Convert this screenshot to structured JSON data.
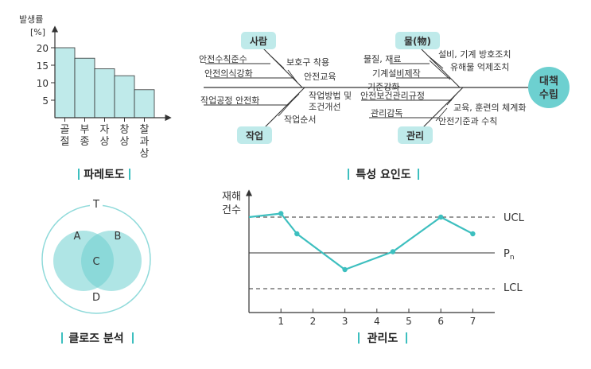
{
  "pareto": {
    "ylabel_line1": "발생률",
    "ylabel_line2": "[%]",
    "ticks": [
      "20",
      "15",
      "10",
      "5"
    ],
    "categories": [
      [
        "골",
        "절"
      ],
      [
        "부",
        "종"
      ],
      [
        "자",
        "상"
      ],
      [
        "창",
        "상"
      ],
      [
        "찰",
        "과",
        "상"
      ]
    ],
    "values": [
      20,
      17,
      14,
      12,
      8
    ],
    "caption": "파레토도"
  },
  "fishbone": {
    "tags": {
      "person": "사람",
      "material": "물(物)",
      "work": "작업",
      "manage": "관리"
    },
    "result_line1": "대책",
    "result_line2": "수립",
    "labels": {
      "person_1": "안전수칙준수",
      "person_2": "보호구 착용",
      "person_3": "안전의식강화",
      "person_4": "안전교육",
      "material_1": "물질, 재료",
      "material_2": "설비, 기계 방호조치",
      "material_3": "유해물 억제조치",
      "material_4": "기계설비제작",
      "material_5": "기준강화",
      "work_1": "작업공정 안전화",
      "work_2a": "작업방법 및",
      "work_2b": "조건개선",
      "work_3": "작업순서",
      "manage_1": "안전보건관리규정",
      "manage_2": "교육, 훈련의 체계화",
      "manage_3": "관리감독",
      "manage_4": "안전기준과 수칙"
    },
    "caption": "특성 요인도"
  },
  "venn": {
    "labels": {
      "t": "T",
      "a": "A",
      "b": "B",
      "c": "C",
      "d": "D"
    },
    "caption": "클로즈 분석"
  },
  "control": {
    "ylabel_line1": "재해",
    "ylabel_line2": "건수",
    "x_ticks": [
      "1",
      "2",
      "3",
      "4",
      "5",
      "6",
      "7"
    ],
    "ucl": "UCL",
    "pn": "P",
    "pn_sub": "n",
    "lcl": "LCL",
    "caption": "관리도",
    "color": "#3dbfbf"
  },
  "chart_data": {
    "type": "line",
    "x": [
      0,
      1,
      1.5,
      3,
      4.5,
      6,
      7
    ],
    "y": [
      3.0,
      3.3,
      1.6,
      -1.4,
      0.1,
      3.0,
      1.6
    ],
    "ylim": [
      -4.3,
      4.4
    ],
    "xlim": [
      0,
      7.8
    ],
    "reference_lines": {
      "UCL": 3.0,
      "Pn": 0.0,
      "LCL": -3.0
    },
    "ylabel": "재해 건수",
    "x_ticks": [
      1,
      2,
      3,
      4,
      5,
      6,
      7
    ]
  }
}
